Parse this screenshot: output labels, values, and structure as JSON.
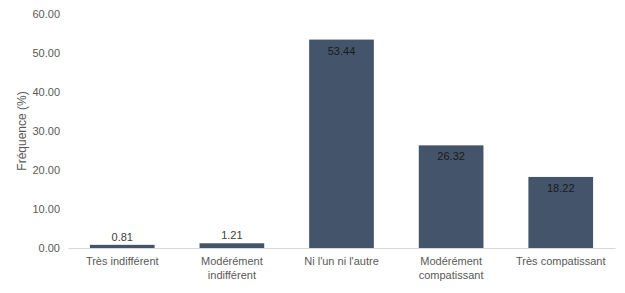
{
  "chart_data": {
    "type": "bar",
    "y_label": "Fréquence (%)",
    "categories": [
      "Très indifférent",
      "Modérément indifférent",
      "Ni l'un ni l'autre",
      "Modérément compatissant",
      "Très compatissant"
    ],
    "values": [
      0.81,
      1.21,
      53.44,
      26.32,
      18.22
    ],
    "color": "#44546a",
    "ylim": [
      0,
      60
    ],
    "yticks": [
      {
        "value": 0,
        "label": "0.00"
      },
      {
        "value": 10,
        "label": "10.00"
      },
      {
        "value": 20,
        "label": "20.00"
      },
      {
        "value": 30,
        "label": "30.00"
      },
      {
        "value": 40,
        "label": "40.00"
      },
      {
        "value": 50,
        "label": "50.00"
      },
      {
        "value": 60,
        "label": "60.00"
      }
    ],
    "grid": false,
    "data_labels": true
  }
}
